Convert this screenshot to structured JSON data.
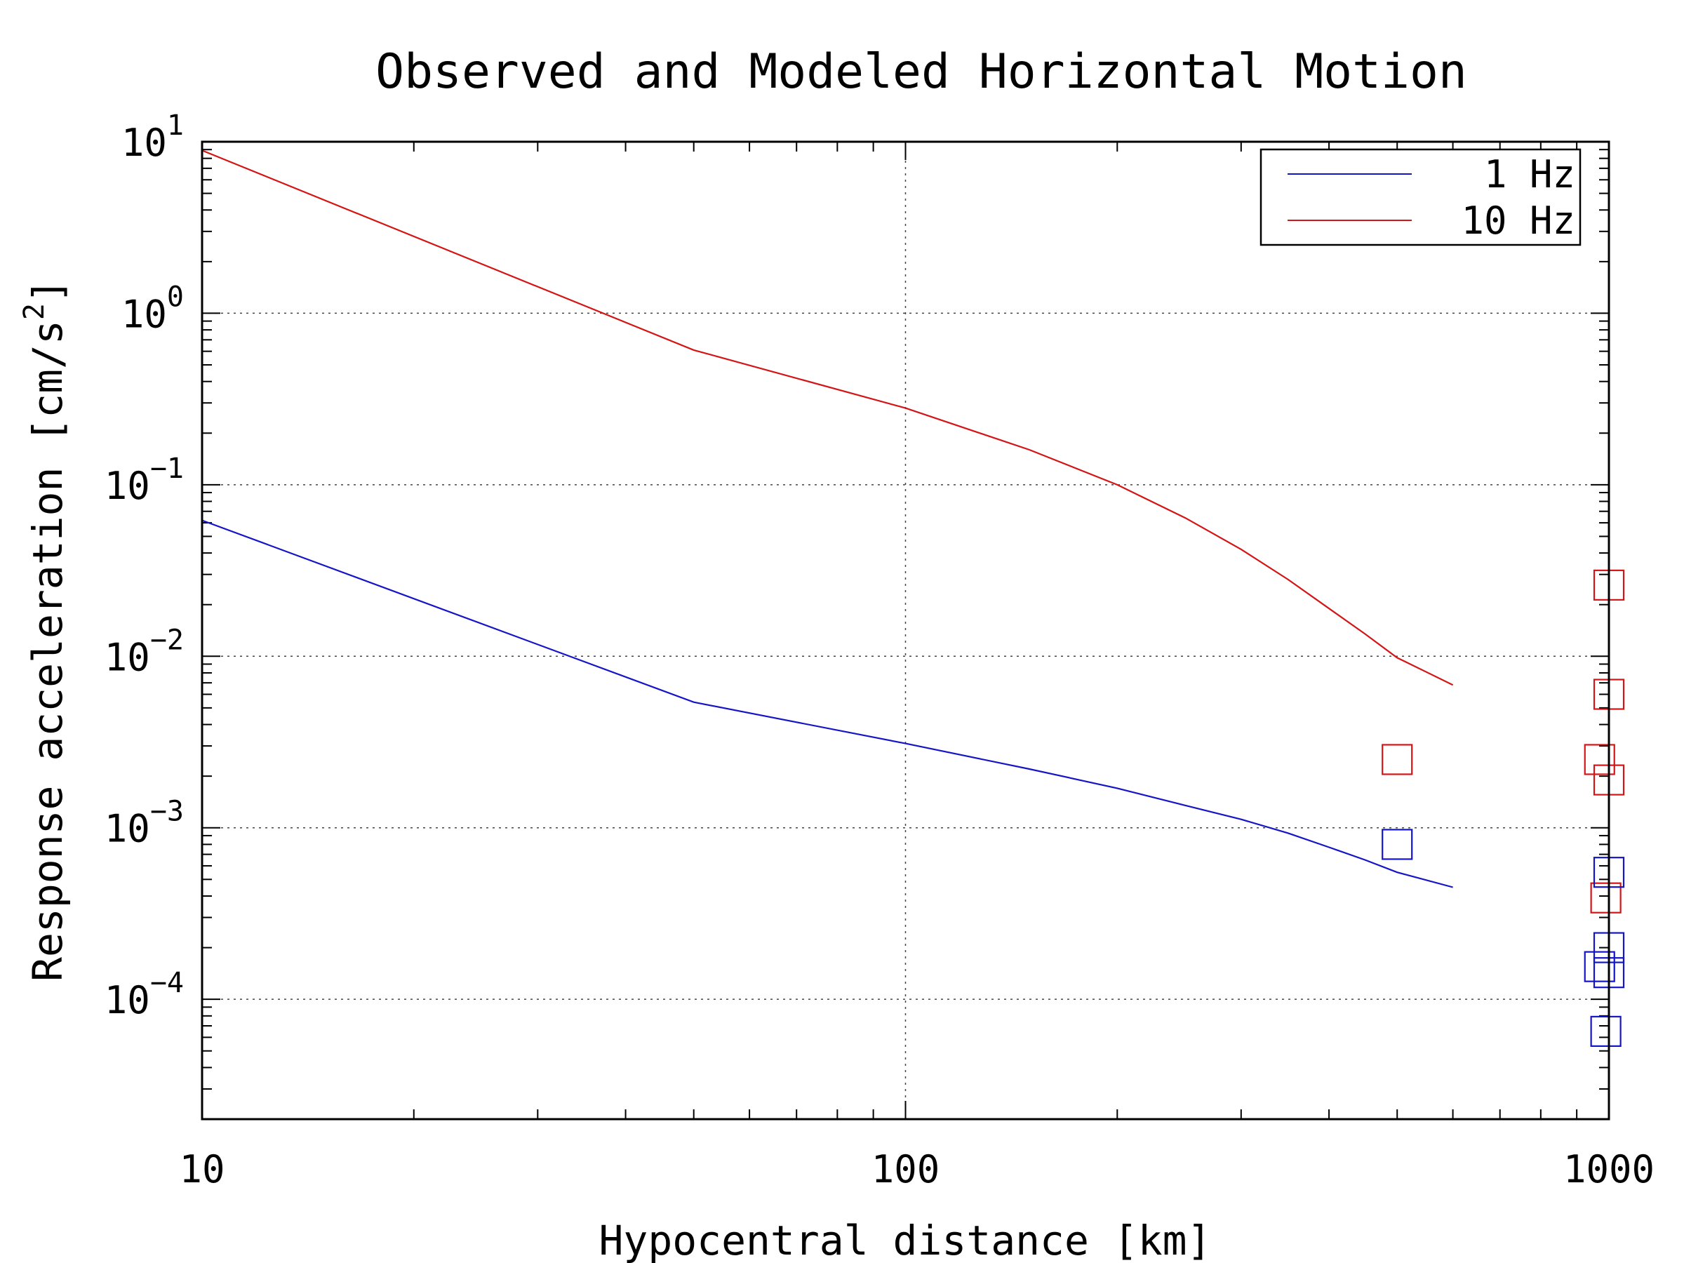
{
  "chart_data": {
    "type": "line",
    "title": "Observed and Modeled Horizontal Motion",
    "xlabel": "Hypocentral distance [km]",
    "ylabel_main": "Response acceleration [cm/s",
    "ylabel_sup": "2",
    "ylabel_end": "]",
    "xscale": "log",
    "yscale": "log",
    "xlim": [
      10,
      1000
    ],
    "ylim": [
      2e-05,
      10
    ],
    "grid": true,
    "legend_position": "top-right",
    "x_ticks": [
      {
        "value": 10,
        "label": "10"
      },
      {
        "value": 100,
        "label": "100"
      },
      {
        "value": 1000,
        "label": "1000"
      }
    ],
    "y_ticks": [
      {
        "value": 10,
        "base": "10",
        "exp": "1"
      },
      {
        "value": 1,
        "base": "10",
        "exp": "0"
      },
      {
        "value": 0.1,
        "base": "10",
        "exp": "−1"
      },
      {
        "value": 0.01,
        "base": "10",
        "exp": "−2"
      },
      {
        "value": 0.001,
        "base": "10",
        "exp": "−3"
      },
      {
        "value": 0.0001,
        "base": "10",
        "exp": "−4"
      }
    ],
    "series": [
      {
        "name": "1 Hz",
        "color": "#1515c8",
        "x": [
          10,
          50,
          100,
          150,
          200,
          250,
          300,
          350,
          400,
          450,
          500,
          600
        ],
        "y": [
          0.062,
          0.0054,
          0.0031,
          0.0022,
          0.0017,
          0.00135,
          0.00112,
          0.00093,
          0.00077,
          0.00065,
          0.00055,
          0.00045
        ]
      },
      {
        "name": "10 Hz",
        "color": "#d41515",
        "x": [
          10,
          50,
          100,
          150,
          200,
          250,
          300,
          350,
          400,
          450,
          500,
          600
        ],
        "y": [
          8.9,
          0.61,
          0.28,
          0.16,
          0.1,
          0.064,
          0.042,
          0.028,
          0.019,
          0.0135,
          0.0098,
          0.0068
        ]
      }
    ],
    "observations": [
      {
        "series": "10 Hz",
        "color": "#d41515",
        "points": [
          [
            500,
            0.0025
          ],
          [
            1000,
            0.026
          ],
          [
            1000,
            0.006
          ],
          [
            970,
            0.0025
          ],
          [
            1000,
            0.0019
          ],
          [
            990,
            0.00039
          ]
        ]
      },
      {
        "series": "1 Hz",
        "color": "#1515c8",
        "points": [
          [
            500,
            0.0008
          ],
          [
            1000,
            0.00055
          ],
          [
            1000,
            0.0002
          ],
          [
            970,
            0.000155
          ],
          [
            1000,
            0.000143
          ],
          [
            990,
            6.5e-05
          ]
        ]
      }
    ]
  }
}
